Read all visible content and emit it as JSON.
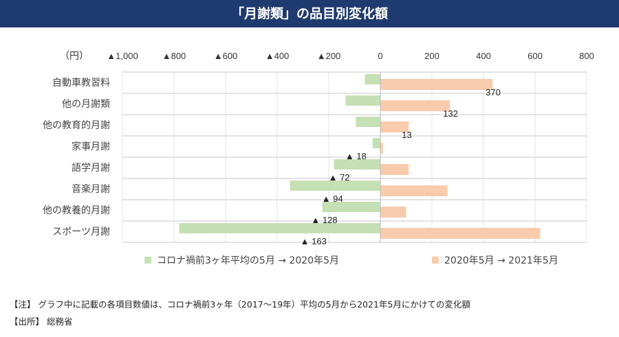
{
  "title": "「月謝類」の品目別変化額",
  "chart_data": {
    "type": "bar",
    "orientation": "horizontal",
    "title": "「月謝類」の品目別変化額",
    "unit_label": "（円）",
    "xlim": [
      -1000,
      800
    ],
    "x_ticks": [
      -1000,
      -800,
      -600,
      -400,
      -200,
      0,
      200,
      400,
      600,
      800
    ],
    "x_tick_labels": [
      "▲1,000",
      "▲800",
      "▲600",
      "▲400",
      "▲200",
      "0",
      "200",
      "400",
      "600",
      "800"
    ],
    "categories": [
      "自動車教習料",
      "他の月謝類",
      "他の教育的月謝",
      "家事月謝",
      "語学月謝",
      "音楽月謝",
      "他の教養的月謝",
      "スポーツ月謝"
    ],
    "series": [
      {
        "name": "コロナ禍前3ヶ年平均の5月 → 2020年5月",
        "color": "#c5e0b4",
        "values": [
          -60,
          -135,
          -95,
          -30,
          -180,
          -350,
          -225,
          -780
        ]
      },
      {
        "name": "2020年5月 → 2021年5月",
        "color": "#f8cbad",
        "values": [
          435,
          270,
          110,
          10,
          110,
          260,
          100,
          620
        ]
      }
    ],
    "data_labels": [
      "370",
      "132",
      "13",
      "▲ 18",
      "▲ 72",
      "▲ 94",
      "▲ 128",
      "▲ 163"
    ],
    "net_values": [
      370,
      132,
      13,
      -18,
      -72,
      -94,
      -128,
      -163
    ],
    "legend_position": "bottom",
    "grid": true
  },
  "notes": {
    "note": "【注】 グラフ中に記載の各項目数値は、コロナ禍前3ヶ年（2017〜19年）平均の5月から2021年5月にかけての変化額",
    "source": "【出所】 総務省"
  }
}
